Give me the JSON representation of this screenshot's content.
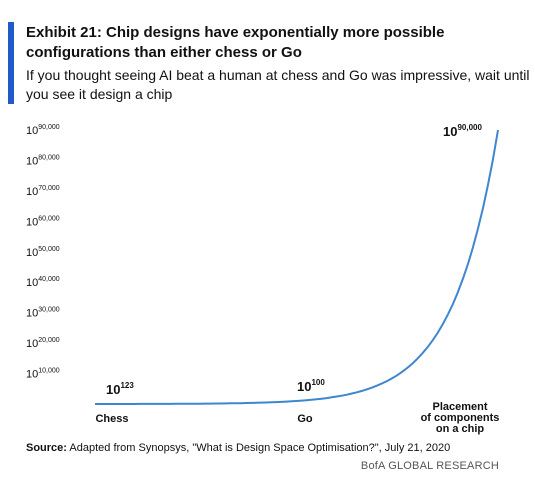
{
  "header": {
    "title": "Exhibit 21: Chip designs have exponentially more possible configurations than either chess or Go",
    "subtitle": "If you thought seeing AI beat a human at chess and Go was impressive, wait until you see it design a chip"
  },
  "footer": {
    "source_label": "Source:",
    "source_text": "Adapted from Synopsys, \"What is Design Space Optimisation?\", July 21, 2020",
    "credit": "BofA GLOBAL RESEARCH"
  },
  "colors": {
    "accent": "#1f5cc9",
    "line": "#3d86d0"
  },
  "chart_data": {
    "type": "line",
    "title": "Exhibit 21: Chip designs have exponentially more possible configurations than either chess or Go",
    "xlabel": "",
    "ylabel": "",
    "y_scale": "log",
    "y_tick_base": "10",
    "y_tick_exponents": [
      "10,000",
      "20,000",
      "30,000",
      "40,000",
      "50,000",
      "60,000",
      "70,000",
      "80,000",
      "90,000"
    ],
    "ylim_exponent": [
      0,
      90000
    ],
    "categories": [
      "Chess",
      "Go",
      "Placement\nof components\non a chip"
    ],
    "series": [
      {
        "exponents": [
          123,
          100,
          90000
        ],
        "data_labels": [
          {
            "base": "10",
            "exp": "123"
          },
          {
            "base": "10",
            "exp": "100"
          },
          {
            "base": "10",
            "exp": "90,000"
          }
        ]
      }
    ],
    "grid": false,
    "legend": "none"
  }
}
